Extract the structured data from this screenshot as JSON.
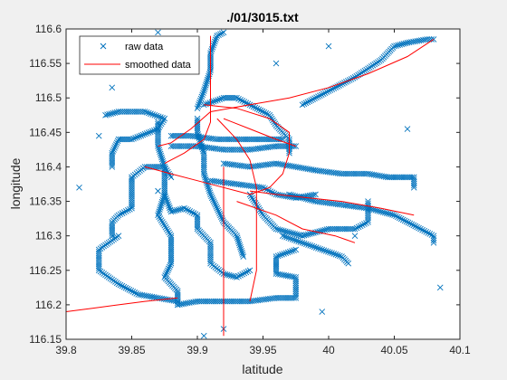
{
  "chart_data": {
    "type": "line",
    "title": "./01/3015.txt",
    "xlabel": "latitude",
    "ylabel": "longitude",
    "xlim": [
      39.8,
      40.1
    ],
    "ylim": [
      116.15,
      116.6
    ],
    "xticks": [
      "39.8",
      "39.85",
      "39.9",
      "39.95",
      "40",
      "40.05",
      "40.1"
    ],
    "yticks": [
      "116.15",
      "116.2",
      "116.25",
      "116.3",
      "116.35",
      "116.4",
      "116.45",
      "116.5",
      "116.55",
      "116.6"
    ],
    "grid": false,
    "legend": {
      "placement": "top-left"
    },
    "colors": {
      "raw": "#0072BD",
      "smoothed": "#FF0000"
    },
    "series": [
      {
        "name": "raw data",
        "marker": "x",
        "paths": [
          [
            [
              39.87,
              116.465
            ],
            [
              39.87,
              116.43
            ],
            [
              39.875,
              116.4
            ],
            [
              39.875,
              116.36
            ],
            [
              39.87,
              116.33
            ],
            [
              39.88,
              116.3
            ],
            [
              39.88,
              116.26
            ],
            [
              39.875,
              116.24
            ],
            [
              39.885,
              116.22
            ],
            [
              39.885,
              116.2
            ]
          ],
          [
            [
              39.885,
              116.2
            ],
            [
              39.9,
              116.205
            ],
            [
              39.92,
              116.205
            ],
            [
              39.94,
              116.205
            ],
            [
              39.96,
              116.21
            ],
            [
              39.975,
              116.21
            ],
            [
              39.975,
              116.24
            ],
            [
              39.96,
              116.245
            ],
            [
              39.96,
              116.27
            ],
            [
              39.975,
              116.28
            ]
          ],
          [
            [
              39.92,
              116.405
            ],
            [
              39.94,
              116.4
            ],
            [
              39.96,
              116.405
            ],
            [
              39.975,
              116.4
            ],
            [
              39.99,
              116.395
            ],
            [
              40.01,
              116.39
            ],
            [
              40.03,
              116.39
            ],
            [
              40.045,
              116.385
            ],
            [
              40.065,
              116.385
            ],
            [
              40.065,
              116.37
            ]
          ],
          [
            [
              39.97,
              116.36
            ],
            [
              39.99,
              116.35
            ],
            [
              40.01,
              116.345
            ],
            [
              40.03,
              116.34
            ],
            [
              40.05,
              116.33
            ],
            [
              40.07,
              116.31
            ],
            [
              40.08,
              116.3
            ],
            [
              40.08,
              116.29
            ]
          ],
          [
            [
              39.94,
              116.36
            ],
            [
              39.95,
              116.33
            ],
            [
              39.96,
              116.31
            ],
            [
              39.98,
              116.3
            ],
            [
              40.0,
              116.31
            ],
            [
              40.02,
              116.31
            ],
            [
              40.03,
              116.32
            ],
            [
              40.03,
              116.35
            ]
          ],
          [
            [
              39.98,
              116.49
            ],
            [
              40.0,
              116.51
            ],
            [
              40.02,
              116.53
            ],
            [
              40.04,
              116.555
            ],
            [
              40.05,
              116.575
            ],
            [
              40.06,
              116.58
            ],
            [
              40.075,
              116.585
            ],
            [
              40.08,
              116.585
            ]
          ],
          [
            [
              39.88,
              116.385
            ],
            [
              39.875,
              116.4
            ],
            [
              39.86,
              116.4
            ],
            [
              39.85,
              116.385
            ],
            [
              39.85,
              116.36
            ],
            [
              39.85,
              116.34
            ],
            [
              39.84,
              116.33
            ],
            [
              39.835,
              116.32
            ],
            [
              39.835,
              116.3
            ]
          ],
          [
            [
              39.84,
              116.3
            ],
            [
              39.825,
              116.28
            ],
            [
              39.825,
              116.25
            ],
            [
              39.84,
              116.23
            ],
            [
              39.855,
              116.215
            ],
            [
              39.87,
              116.21
            ],
            [
              39.885,
              116.205
            ]
          ],
          [
            [
              39.83,
              116.475
            ],
            [
              39.84,
              116.48
            ],
            [
              39.86,
              116.48
            ],
            [
              39.875,
              116.47
            ],
            [
              39.87,
              116.455
            ],
            [
              39.85,
              116.44
            ],
            [
              39.84,
              116.44
            ],
            [
              39.835,
              116.42
            ],
            [
              39.835,
              116.4
            ]
          ],
          [
            [
              39.875,
              116.36
            ],
            [
              39.88,
              116.335
            ],
            [
              39.89,
              116.34
            ],
            [
              39.9,
              116.33
            ],
            [
              39.9,
              116.31
            ],
            [
              39.91,
              116.29
            ],
            [
              39.91,
              116.26
            ],
            [
              39.92,
              116.245
            ],
            [
              39.93,
              116.24
            ],
            [
              39.94,
              116.25
            ]
          ],
          [
            [
              39.9,
              116.47
            ],
            [
              39.9,
              116.45
            ],
            [
              39.905,
              116.42
            ],
            [
              39.905,
              116.39
            ],
            [
              39.91,
              116.36
            ],
            [
              39.915,
              116.34
            ],
            [
              39.92,
              116.32
            ],
            [
              39.93,
              116.3
            ],
            [
              39.935,
              116.27
            ]
          ],
          [
            [
              39.905,
              116.49
            ],
            [
              39.92,
              116.5
            ],
            [
              39.93,
              116.5
            ],
            [
              39.94,
              116.49
            ],
            [
              39.955,
              116.475
            ],
            [
              39.96,
              116.46
            ],
            [
              39.97,
              116.44
            ],
            [
              39.97,
              116.42
            ]
          ],
          [
            [
              39.9,
              116.485
            ],
            [
              39.905,
              116.51
            ],
            [
              39.91,
              116.54
            ],
            [
              39.91,
              116.565
            ],
            [
              39.915,
              116.59
            ],
            [
              39.92,
              116.595
            ]
          ],
          [
            [
              39.88,
              116.43
            ],
            [
              39.9,
              116.43
            ],
            [
              39.92,
              116.425
            ],
            [
              39.94,
              116.425
            ],
            [
              39.96,
              116.43
            ],
            [
              39.975,
              116.43
            ]
          ],
          [
            [
              39.88,
              116.445
            ],
            [
              39.895,
              116.445
            ],
            [
              39.915,
              116.44
            ],
            [
              39.935,
              116.44
            ],
            [
              39.95,
              116.44
            ],
            [
              39.965,
              116.44
            ]
          ],
          [
            [
              39.91,
              116.38
            ],
            [
              39.93,
              116.375
            ],
            [
              39.95,
              116.37
            ],
            [
              39.96,
              116.36
            ],
            [
              39.975,
              116.355
            ],
            [
              39.99,
              116.36
            ]
          ],
          [
            [
              39.965,
              116.3
            ],
            [
              39.98,
              116.29
            ],
            [
              39.995,
              116.28
            ],
            [
              40.01,
              116.27
            ],
            [
              40.015,
              116.26
            ]
          ]
        ],
        "outliers": [
          [
            39.81,
            116.37
          ],
          [
            39.835,
            116.515
          ],
          [
            39.825,
            116.445
          ],
          [
            39.87,
            116.365
          ],
          [
            40.0,
            116.575
          ],
          [
            39.995,
            116.19
          ],
          [
            40.06,
            116.455
          ],
          [
            40.085,
            116.225
          ],
          [
            39.96,
            116.55
          ],
          [
            39.92,
            116.165
          ],
          [
            39.905,
            116.155
          ],
          [
            39.87,
            116.595
          ],
          [
            40.02,
            116.3
          ]
        ]
      },
      {
        "name": "smoothed data",
        "marker": "none",
        "paths": [
          [
            [
              39.875,
              116.405
            ],
            [
              39.89,
              116.42
            ],
            [
              39.905,
              116.44
            ],
            [
              39.91,
              116.465
            ],
            [
              39.91,
              116.49
            ],
            [
              39.91,
              116.52
            ],
            [
              39.91,
              116.555
            ],
            [
              39.91,
              116.59
            ]
          ],
          [
            [
              39.905,
              116.49
            ],
            [
              39.93,
              116.485
            ],
            [
              39.955,
              116.47
            ],
            [
              39.97,
              116.45
            ],
            [
              39.97,
              116.42
            ],
            [
              39.965,
              116.39
            ],
            [
              39.955,
              116.37
            ],
            [
              39.94,
              116.36
            ]
          ],
          [
            [
              39.94,
              116.36
            ],
            [
              39.92,
              116.37
            ],
            [
              39.9,
              116.38
            ],
            [
              39.88,
              116.39
            ],
            [
              39.86,
              116.4
            ]
          ],
          [
            [
              39.915,
              116.47
            ],
            [
              39.93,
              116.44
            ],
            [
              39.94,
              116.41
            ],
            [
              39.945,
              116.37
            ],
            [
              39.945,
              116.33
            ],
            [
              39.945,
              116.29
            ],
            [
              39.945,
              116.25
            ],
            [
              39.94,
              116.205
            ]
          ],
          [
            [
              39.94,
              116.365
            ],
            [
              39.96,
              116.36
            ],
            [
              39.985,
              116.355
            ],
            [
              40.01,
              116.35
            ],
            [
              40.04,
              116.34
            ],
            [
              40.065,
              116.33
            ]
          ],
          [
            [
              39.91,
              116.48
            ],
            [
              39.94,
              116.49
            ],
            [
              39.97,
              116.5
            ],
            [
              40.0,
              116.515
            ],
            [
              40.03,
              116.535
            ],
            [
              40.06,
              116.56
            ],
            [
              40.08,
              116.585
            ]
          ],
          [
            [
              39.92,
              116.4
            ],
            [
              39.92,
              116.35
            ],
            [
              39.92,
              116.3
            ],
            [
              39.92,
              116.25
            ],
            [
              39.92,
              116.2
            ],
            [
              39.92,
              116.155
            ]
          ],
          [
            [
              39.93,
              116.35
            ],
            [
              39.96,
              116.33
            ],
            [
              39.98,
              116.31
            ],
            [
              40.005,
              116.3
            ],
            [
              40.02,
              116.29
            ]
          ],
          [
            [
              39.885,
              116.21
            ],
            [
              39.86,
              116.205
            ],
            [
              39.84,
              116.2
            ],
            [
              39.82,
              116.195
            ],
            [
              39.8,
              116.19
            ]
          ],
          [
            [
              39.92,
              116.47
            ],
            [
              39.94,
              116.455
            ],
            [
              39.96,
              116.44
            ],
            [
              39.975,
              116.43
            ]
          ],
          [
            [
              39.91,
              116.48
            ],
            [
              39.895,
              116.455
            ],
            [
              39.88,
              116.435
            ],
            [
              39.87,
              116.43
            ]
          ]
        ]
      }
    ]
  }
}
